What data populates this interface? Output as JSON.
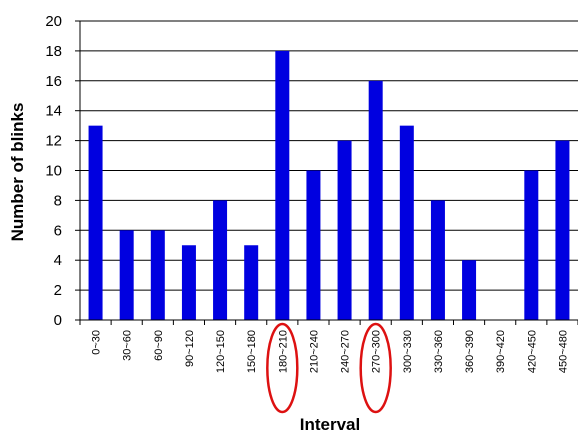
{
  "chart_data": {
    "type": "bar",
    "title": "",
    "xlabel": "Interval",
    "ylabel": "Number of blinks",
    "ylim": [
      0,
      20
    ],
    "yticks": [
      "0",
      "2",
      "4",
      "6",
      "8",
      "10",
      "12",
      "14",
      "16",
      "18",
      "20"
    ],
    "grid": "horizontal",
    "legend": "none",
    "categories": [
      "0~30",
      "30~60",
      "60~90",
      "90~120",
      "120~150",
      "150~180",
      "180~210",
      "210~240",
      "240~270",
      "270~300",
      "300~330",
      "330~360",
      "360~390",
      "390~420",
      "420~450",
      "450~480"
    ],
    "values": [
      13,
      6,
      6,
      5,
      8,
      5,
      18,
      10,
      12,
      16,
      13,
      8,
      4,
      0,
      10,
      12
    ],
    "highlighted_categories": [
      "180~210",
      "270~300"
    ],
    "colors": {
      "bar": "#0000e0",
      "highlight_ring": "#dd1111",
      "grid": "#000000"
    }
  }
}
